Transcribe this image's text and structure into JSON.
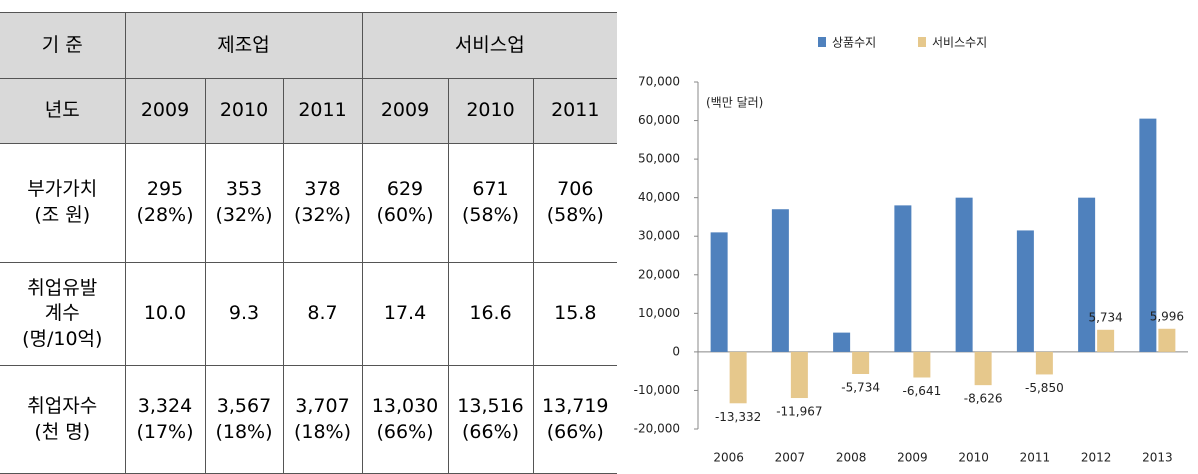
{
  "table": {
    "header": [
      [
        "기 준",
        "제조업",
        "서비스업"
      ],
      [
        "년도",
        "2009",
        "2010",
        "2011",
        "2009",
        "2010",
        "2011"
      ]
    ],
    "rows": [
      [
        "부가가치\n(조 원)",
        "295\n(28%)",
        "353\n(32%)",
        "378\n(32%)",
        "629\n(60%)",
        "671\n(58%)",
        "706\n(58%)"
      ],
      [
        "취업유발\n계수\n(명/10억)",
        "10.0",
        "9.3",
        "8.7",
        "17.4",
        "16.6",
        "15.8"
      ],
      [
        "취업자수\n(천 명)",
        "3,324\n(17%)",
        "3,567\n(18%)",
        "3,707\n(18%)",
        "13,030\n(66%)",
        "13,516\n(66%)",
        "13,719\n(66%)"
      ]
    ]
  },
  "chart_data": {
    "type": "bar",
    "annotation": "(백만 달러)",
    "categories": [
      "2006",
      "2007",
      "2008",
      "2009",
      "2010",
      "2011",
      "2012",
      "2013"
    ],
    "series": [
      {
        "name": "상품수지",
        "color": "#4f81bd",
        "values": [
          31000,
          37000,
          5000,
          38000,
          40000,
          31500,
          40000,
          60500
        ]
      },
      {
        "name": "서비스수지",
        "color": "#e6c88c",
        "values": [
          -13332,
          -11967,
          -5734,
          -6641,
          -8626,
          -5850,
          5734,
          5996
        ],
        "value_labels": [
          "-13,332",
          "-11,967",
          "-5,734",
          "-6,641",
          "-8,626",
          "-5,850",
          "5,734",
          "5,996"
        ]
      }
    ],
    "ylim": [
      -20000,
      70000
    ],
    "yticks": [
      {
        "value": -20000,
        "label": "-20,000"
      },
      {
        "value": -10000,
        "label": "-10,000"
      },
      0,
      {
        "value": 10000,
        "label": "10,000"
      },
      {
        "value": 20000,
        "label": "20,000"
      },
      {
        "value": 30000,
        "label": "30,000"
      },
      {
        "value": 40000,
        "label": "40,000"
      },
      {
        "value": 50000,
        "label": "50,000"
      },
      {
        "value": 60000,
        "label": "60,000"
      },
      {
        "value": 70000,
        "label": "70,000"
      }
    ],
    "legend": "top"
  }
}
